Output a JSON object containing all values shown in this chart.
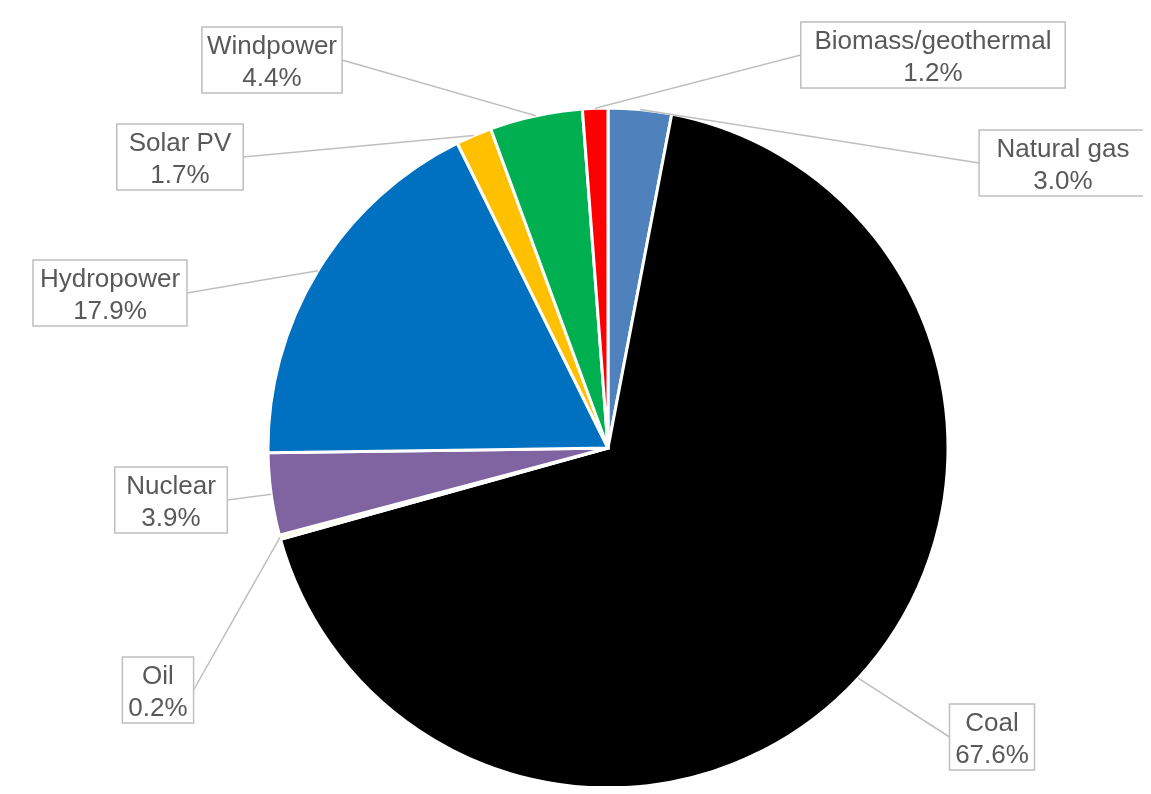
{
  "chart_data": {
    "type": "pie",
    "categories": [
      "Natural gas",
      "Coal",
      "Oil",
      "Nuclear",
      "Hydropower",
      "Solar PV",
      "Windpower",
      "Biomass/geothermal"
    ],
    "values": [
      3.0,
      67.6,
      0.2,
      3.9,
      17.9,
      1.7,
      4.4,
      1.2
    ],
    "value_labels": [
      "3.0%",
      "67.6%",
      "0.2%",
      "3.9%",
      "17.9%",
      "1.7%",
      "4.4%",
      "1.2%"
    ],
    "colors": [
      "#4f81bd",
      "#000000",
      "#fffbd0",
      "#8064a2",
      "#0070c0",
      "#ffc000",
      "#00b050",
      "#ff0000"
    ],
    "legend": false
  }
}
